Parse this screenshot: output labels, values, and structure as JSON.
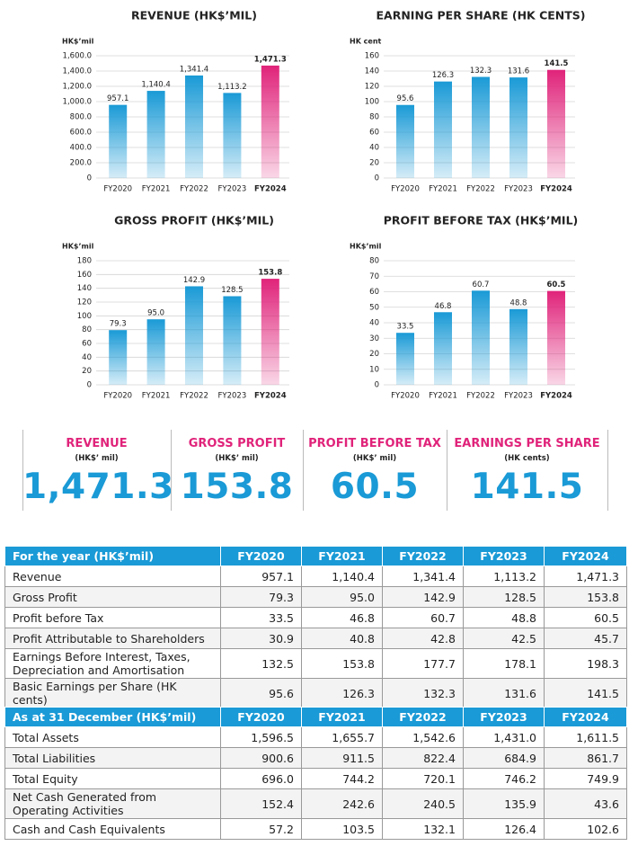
{
  "chart_data": [
    {
      "type": "bar",
      "title": "REVENUE (HK$’MIL)",
      "unit": "HK$’mil",
      "categories": [
        "FY2020",
        "FY2021",
        "FY2022",
        "FY2023",
        "FY2024"
      ],
      "values": [
        957.1,
        1140.4,
        1341.4,
        1113.2,
        1471.3
      ],
      "value_labels": [
        "957.1",
        "1,140.4",
        "1,341.4",
        "1,113.2",
        "1,471.3"
      ],
      "colors": [
        "#1a9ad6",
        "#1a9ad6",
        "#1a9ad6",
        "#1a9ad6",
        "#e0237a"
      ],
      "ylim": [
        0,
        1600
      ],
      "yticks": [
        0,
        {
          "value": 200,
          "label": "200.0"
        },
        {
          "value": 400,
          "label": "400.0"
        },
        {
          "value": 600,
          "label": "600.0"
        },
        {
          "value": 800,
          "label": "800.0"
        },
        {
          "value": 1000,
          "label": "1,000.0"
        },
        {
          "value": 1200,
          "label": "1,200.0"
        },
        {
          "value": 1400,
          "label": "1,400.0"
        },
        {
          "value": 1600,
          "label": "1,600.0"
        }
      ],
      "grid": true
    },
    {
      "type": "bar",
      "title": "EARNING PER SHARE (HK CENTS)",
      "unit": "HK cent",
      "categories": [
        "FY2020",
        "FY2021",
        "FY2022",
        "FY2023",
        "FY2024"
      ],
      "values": [
        95.6,
        126.3,
        132.3,
        131.6,
        141.5
      ],
      "value_labels": [
        "95.6",
        "126.3",
        "132.3",
        "131.6",
        "141.5"
      ],
      "colors": [
        "#1a9ad6",
        "#1a9ad6",
        "#1a9ad6",
        "#1a9ad6",
        "#e0237a"
      ],
      "ylim": [
        0,
        160
      ],
      "yticks": [
        0,
        20,
        40,
        60,
        80,
        100,
        120,
        140,
        160
      ],
      "grid": true
    },
    {
      "type": "bar",
      "title": "GROSS PROFIT (HK$’MIL)",
      "unit": "HK$’mil",
      "categories": [
        "FY2020",
        "FY2021",
        "FY2022",
        "FY2023",
        "FY2024"
      ],
      "values": [
        79.3,
        95.0,
        142.9,
        128.5,
        153.8
      ],
      "value_labels": [
        "79.3",
        "95.0",
        "142.9",
        "128.5",
        "153.8"
      ],
      "colors": [
        "#1a9ad6",
        "#1a9ad6",
        "#1a9ad6",
        "#1a9ad6",
        "#e0237a"
      ],
      "ylim": [
        0,
        180
      ],
      "yticks": [
        0,
        20,
        40,
        60,
        80,
        100,
        120,
        140,
        160,
        180
      ],
      "grid": true
    },
    {
      "type": "bar",
      "title": "PROFIT BEFORE TAX (HK$’MIL)",
      "unit": "HK$’mil",
      "categories": [
        "FY2020",
        "FY2021",
        "FY2022",
        "FY2023",
        "FY2024"
      ],
      "values": [
        33.5,
        46.8,
        60.7,
        48.8,
        60.5
      ],
      "value_labels": [
        "33.5",
        "46.8",
        "60.7",
        "48.8",
        "60.5"
      ],
      "colors": [
        "#1a9ad6",
        "#1a9ad6",
        "#1a9ad6",
        "#1a9ad6",
        "#e0237a"
      ],
      "ylim": [
        0,
        80
      ],
      "yticks": [
        0,
        10,
        20,
        30,
        40,
        50,
        60,
        70,
        80
      ],
      "grid": true
    }
  ],
  "kpis": [
    {
      "title": "REVENUE",
      "unit": "(HK$’ mil)",
      "value": "1,471.3"
    },
    {
      "title": "GROSS PROFIT",
      "unit": "(HK$’ mil)",
      "value": "153.8"
    },
    {
      "title": "PROFIT BEFORE TAX",
      "unit": "(HK$’ mil)",
      "value": "60.5"
    },
    {
      "title": "EARNINGS PER SHARE",
      "unit": "(HK cents)",
      "value": "141.5"
    }
  ],
  "tables": [
    {
      "header": [
        "For the year (HK$’mil)",
        "FY2020",
        "FY2021",
        "FY2022",
        "FY2023",
        "FY2024"
      ],
      "rows": [
        [
          "Revenue",
          "957.1",
          "1,140.4",
          "1,341.4",
          "1,113.2",
          "1,471.3"
        ],
        [
          "Gross Profit",
          "79.3",
          "95.0",
          "142.9",
          "128.5",
          "153.8"
        ],
        [
          "Profit before Tax",
          "33.5",
          "46.8",
          "60.7",
          "48.8",
          "60.5"
        ],
        [
          "Profit Attributable to Shareholders",
          "30.9",
          "40.8",
          "42.8",
          "42.5",
          "45.7"
        ],
        [
          "Earnings Before Interest, Taxes, Depreciation and Amortisation",
          "132.5",
          "153.8",
          "177.7",
          "178.1",
          "198.3"
        ],
        [
          "Basic Earnings per Share (HK cents)",
          "95.6",
          "126.3",
          "132.3",
          "131.6",
          "141.5"
        ]
      ]
    },
    {
      "header": [
        "As at 31 December (HK$’mil)",
        "FY2020",
        "FY2021",
        "FY2022",
        "FY2023",
        "FY2024"
      ],
      "rows": [
        [
          "Total Assets",
          "1,596.5",
          "1,655.7",
          "1,542.6",
          "1,431.0",
          "1,611.5"
        ],
        [
          "Total Liabilities",
          "900.6",
          "911.5",
          "822.4",
          "684.9",
          "861.7"
        ],
        [
          "Total Equity",
          "696.0",
          "744.2",
          "720.1",
          "746.2",
          "749.9"
        ],
        [
          "Net Cash Generated from Operating Activities",
          "152.4",
          "242.6",
          "240.5",
          "135.9",
          "43.6"
        ],
        [
          "Cash and Cash Equivalents",
          "57.2",
          "103.5",
          "132.1",
          "126.4",
          "102.6"
        ]
      ]
    }
  ]
}
